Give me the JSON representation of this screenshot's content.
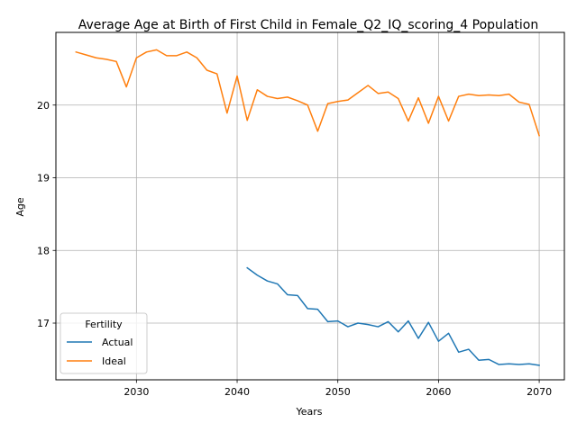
{
  "chart_data": {
    "type": "line",
    "title": "Average Age at Birth of First Child in Female_Q2_IQ_scoring_4 Population",
    "xlabel": "Years",
    "ylabel": "Age",
    "xlim": [
      2022,
      2072.5
    ],
    "ylim": [
      16.22,
      21.0
    ],
    "xticks": [
      2030,
      2040,
      2050,
      2060,
      2070
    ],
    "yticks": [
      17,
      18,
      19,
      20
    ],
    "grid": true,
    "legend": {
      "title": "Fertility",
      "placement": "lower-left"
    },
    "series": [
      {
        "name": "Actual",
        "color": "#1f77b4",
        "x": [
          2041,
          2042,
          2043,
          2044,
          2045,
          2046,
          2047,
          2048,
          2049,
          2050,
          2051,
          2052,
          2053,
          2054,
          2055,
          2056,
          2057,
          2058,
          2059,
          2060,
          2061,
          2062,
          2063,
          2064,
          2065,
          2066,
          2067,
          2068,
          2069,
          2070
        ],
        "y": [
          17.76,
          17.66,
          17.58,
          17.54,
          17.39,
          17.38,
          17.2,
          17.19,
          17.02,
          17.03,
          16.95,
          17.0,
          16.98,
          16.95,
          17.02,
          16.88,
          17.03,
          16.79,
          17.01,
          16.75,
          16.86,
          16.6,
          16.64,
          16.49,
          16.5,
          16.43,
          16.44,
          16.43,
          16.44,
          16.42
        ]
      },
      {
        "name": "Ideal",
        "color": "#ff7f0e",
        "x": [
          2024,
          2025,
          2026,
          2027,
          2028,
          2029,
          2030,
          2031,
          2032,
          2033,
          2034,
          2035,
          2036,
          2037,
          2038,
          2039,
          2040,
          2041,
          2042,
          2043,
          2044,
          2045,
          2046,
          2047,
          2048,
          2049,
          2050,
          2051,
          2052,
          2053,
          2054,
          2055,
          2056,
          2057,
          2058,
          2059,
          2060,
          2061,
          2062,
          2063,
          2064,
          2065,
          2066,
          2067,
          2068,
          2069,
          2070
        ],
        "y": [
          20.73,
          20.69,
          20.65,
          20.63,
          20.6,
          20.25,
          20.65,
          20.73,
          20.76,
          20.68,
          20.68,
          20.73,
          20.65,
          20.48,
          20.43,
          19.89,
          20.4,
          19.79,
          20.21,
          20.12,
          20.09,
          20.11,
          20.06,
          20.0,
          19.64,
          20.02,
          20.05,
          20.07,
          20.17,
          20.27,
          20.16,
          20.18,
          20.09,
          19.78,
          20.1,
          19.75,
          20.12,
          19.78,
          20.12,
          20.15,
          20.13,
          20.14,
          20.13,
          20.15,
          20.04,
          20.01,
          19.58
        ]
      }
    ]
  }
}
